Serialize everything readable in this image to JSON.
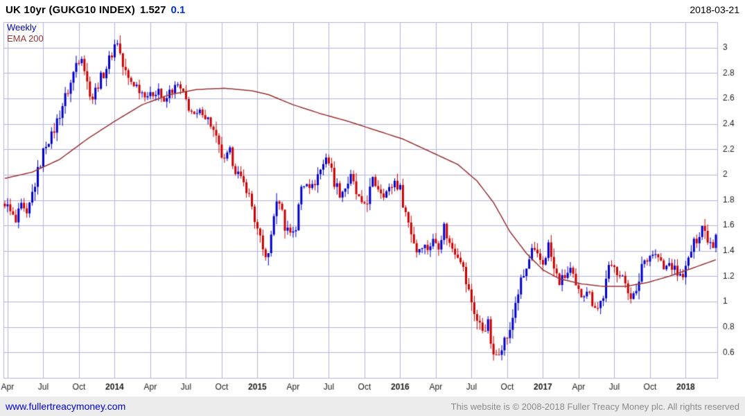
{
  "header": {
    "title": "UK 10yr (GUKG10 INDEX)",
    "last_value": "1.527",
    "change": "0.1",
    "date": "2018-03-21"
  },
  "legend": {
    "timeframe": "Weekly",
    "overlay": "EMA 200"
  },
  "footer": {
    "link": "www.fullertreacymoney.com",
    "copyright": "This website is © 2008-2018 Fuller Treacy Money plc. All rights reserved"
  },
  "chart_data": {
    "type": "candlestick",
    "title": "UK 10yr (GUKG10 INDEX)",
    "timeframe": "Weekly",
    "last_price": 1.527,
    "change": 0.1,
    "as_of": "2018-03-21",
    "x_start": "2013-03",
    "x_end": "2018-03",
    "x_domain_weeks": 260,
    "ylim": [
      0.4,
      3.2
    ],
    "y_tick_values": [
      0.6,
      0.8,
      1,
      1.2,
      1.4,
      1.6,
      1.8,
      2,
      2.2,
      2.4,
      2.6,
      2.8,
      3
    ],
    "y_tick_labels": [
      "0.6",
      "0.8",
      "1",
      "1.2",
      "1.4",
      "1.6",
      "1.8",
      "2",
      "2.2",
      "2.4",
      "2.6",
      "2.8",
      "3"
    ],
    "x_ticks": [
      {
        "label": "Apr",
        "week": 1
      },
      {
        "label": "Jul",
        "week": 14
      },
      {
        "label": "Oct",
        "week": 27
      },
      {
        "label": "2014",
        "week": 40,
        "bold": true
      },
      {
        "label": "Apr",
        "week": 53
      },
      {
        "label": "Jul",
        "week": 66
      },
      {
        "label": "Oct",
        "week": 79
      },
      {
        "label": "2015",
        "week": 92,
        "bold": true
      },
      {
        "label": "Apr",
        "week": 105
      },
      {
        "label": "Jul",
        "week": 118
      },
      {
        "label": "Oct",
        "week": 131
      },
      {
        "label": "2016",
        "week": 144,
        "bold": true
      },
      {
        "label": "Apr",
        "week": 157
      },
      {
        "label": "Jul",
        "week": 170
      },
      {
        "label": "Oct",
        "week": 183
      },
      {
        "label": "2017",
        "week": 196,
        "bold": true
      },
      {
        "label": "Apr",
        "week": 209
      },
      {
        "label": "Jul",
        "week": 222
      },
      {
        "label": "Oct",
        "week": 235
      },
      {
        "label": "2018",
        "week": 248,
        "bold": true
      }
    ],
    "grid": true,
    "legend_position": "top-left",
    "colors": {
      "up": "#0000cc",
      "down": "#cc0000",
      "ema": "#993333",
      "grid": "#b3b3d9",
      "text": "#1a1a1a",
      "accent_blue": "#0033cc"
    },
    "render_hints": {
      "candle_noise_base": 0.03,
      "candle_noise_max": 0.05,
      "wick_factor": 1.4
    },
    "series": [
      {
        "name": "UK 10yr weekly close (anchor points, [week, yield%])",
        "role": "price-close-anchors",
        "points": [
          [
            0,
            1.78
          ],
          [
            2,
            1.7
          ],
          [
            4,
            1.62
          ],
          [
            6,
            1.75
          ],
          [
            8,
            1.66
          ],
          [
            10,
            1.85
          ],
          [
            13,
            2.1
          ],
          [
            15,
            2.25
          ],
          [
            17,
            2.3
          ],
          [
            19,
            2.42
          ],
          [
            21,
            2.55
          ],
          [
            24,
            2.72
          ],
          [
            26,
            2.88
          ],
          [
            28,
            2.95
          ],
          [
            30,
            2.72
          ],
          [
            32,
            2.6
          ],
          [
            34,
            2.72
          ],
          [
            36,
            2.8
          ],
          [
            38,
            2.9
          ],
          [
            40,
            3.02
          ],
          [
            41,
            3.05
          ],
          [
            43,
            2.85
          ],
          [
            45,
            2.75
          ],
          [
            48,
            2.7
          ],
          [
            50,
            2.65
          ],
          [
            53,
            2.62
          ],
          [
            56,
            2.68
          ],
          [
            58,
            2.55
          ],
          [
            60,
            2.65
          ],
          [
            63,
            2.7
          ],
          [
            66,
            2.58
          ],
          [
            69,
            2.45
          ],
          [
            72,
            2.5
          ],
          [
            75,
            2.4
          ],
          [
            78,
            2.2
          ],
          [
            80,
            2.1
          ],
          [
            82,
            2.18
          ],
          [
            84,
            2.05
          ],
          [
            86,
            1.95
          ],
          [
            88,
            1.9
          ],
          [
            90,
            1.75
          ],
          [
            92,
            1.55
          ],
          [
            94,
            1.4
          ],
          [
            96,
            1.35
          ],
          [
            98,
            1.7
          ],
          [
            100,
            1.8
          ],
          [
            102,
            1.6
          ],
          [
            104,
            1.55
          ],
          [
            106,
            1.58
          ],
          [
            108,
            1.9
          ],
          [
            110,
            1.95
          ],
          [
            112,
            1.9
          ],
          [
            114,
            2.0
          ],
          [
            116,
            2.08
          ],
          [
            117,
            2.15
          ],
          [
            118,
            2.1
          ],
          [
            120,
            1.95
          ],
          [
            122,
            1.85
          ],
          [
            124,
            1.9
          ],
          [
            126,
            1.98
          ],
          [
            128,
            1.85
          ],
          [
            130,
            1.75
          ],
          [
            132,
            1.8
          ],
          [
            134,
            1.95
          ],
          [
            136,
            1.9
          ],
          [
            138,
            1.85
          ],
          [
            140,
            1.88
          ],
          [
            142,
            1.95
          ],
          [
            144,
            1.88
          ],
          [
            146,
            1.7
          ],
          [
            148,
            1.55
          ],
          [
            150,
            1.4
          ],
          [
            152,
            1.45
          ],
          [
            154,
            1.42
          ],
          [
            156,
            1.48
          ],
          [
            158,
            1.45
          ],
          [
            160,
            1.6
          ],
          [
            162,
            1.45
          ],
          [
            164,
            1.4
          ],
          [
            166,
            1.35
          ],
          [
            168,
            1.15
          ],
          [
            170,
            1.0
          ],
          [
            172,
            0.85
          ],
          [
            174,
            0.78
          ],
          [
            176,
            0.82
          ],
          [
            178,
            0.55
          ],
          [
            180,
            0.62
          ],
          [
            182,
            0.7
          ],
          [
            184,
            0.75
          ],
          [
            186,
            1.0
          ],
          [
            188,
            1.15
          ],
          [
            190,
            1.25
          ],
          [
            192,
            1.4
          ],
          [
            194,
            1.35
          ],
          [
            196,
            1.3
          ],
          [
            198,
            1.45
          ],
          [
            200,
            1.25
          ],
          [
            202,
            1.15
          ],
          [
            204,
            1.2
          ],
          [
            206,
            1.25
          ],
          [
            208,
            1.1
          ],
          [
            210,
            1.05
          ],
          [
            212,
            1.1
          ],
          [
            214,
            1.0
          ],
          [
            216,
            0.95
          ],
          [
            218,
            1.05
          ],
          [
            220,
            1.25
          ],
          [
            222,
            1.3
          ],
          [
            224,
            1.2
          ],
          [
            226,
            1.15
          ],
          [
            228,
            1.05
          ],
          [
            230,
            1.05
          ],
          [
            232,
            1.3
          ],
          [
            234,
            1.35
          ],
          [
            236,
            1.38
          ],
          [
            238,
            1.35
          ],
          [
            240,
            1.25
          ],
          [
            242,
            1.3
          ],
          [
            244,
            1.25
          ],
          [
            246,
            1.2
          ],
          [
            248,
            1.25
          ],
          [
            250,
            1.4
          ],
          [
            252,
            1.5
          ],
          [
            254,
            1.6
          ],
          [
            256,
            1.5
          ],
          [
            258,
            1.45
          ],
          [
            259,
            1.527
          ]
        ]
      },
      {
        "name": "EMA 200",
        "role": "overlay-line",
        "color": "#993333",
        "points": [
          [
            0,
            1.97
          ],
          [
            10,
            2.02
          ],
          [
            20,
            2.12
          ],
          [
            30,
            2.28
          ],
          [
            40,
            2.42
          ],
          [
            50,
            2.55
          ],
          [
            60,
            2.63
          ],
          [
            70,
            2.67
          ],
          [
            80,
            2.68
          ],
          [
            90,
            2.66
          ],
          [
            96,
            2.63
          ],
          [
            105,
            2.55
          ],
          [
            115,
            2.48
          ],
          [
            125,
            2.42
          ],
          [
            135,
            2.35
          ],
          [
            145,
            2.28
          ],
          [
            155,
            2.18
          ],
          [
            165,
            2.08
          ],
          [
            172,
            1.95
          ],
          [
            178,
            1.78
          ],
          [
            184,
            1.55
          ],
          [
            190,
            1.38
          ],
          [
            196,
            1.25
          ],
          [
            202,
            1.18
          ],
          [
            210,
            1.14
          ],
          [
            218,
            1.12
          ],
          [
            226,
            1.12
          ],
          [
            234,
            1.15
          ],
          [
            242,
            1.2
          ],
          [
            250,
            1.26
          ],
          [
            259,
            1.33
          ]
        ]
      }
    ]
  }
}
